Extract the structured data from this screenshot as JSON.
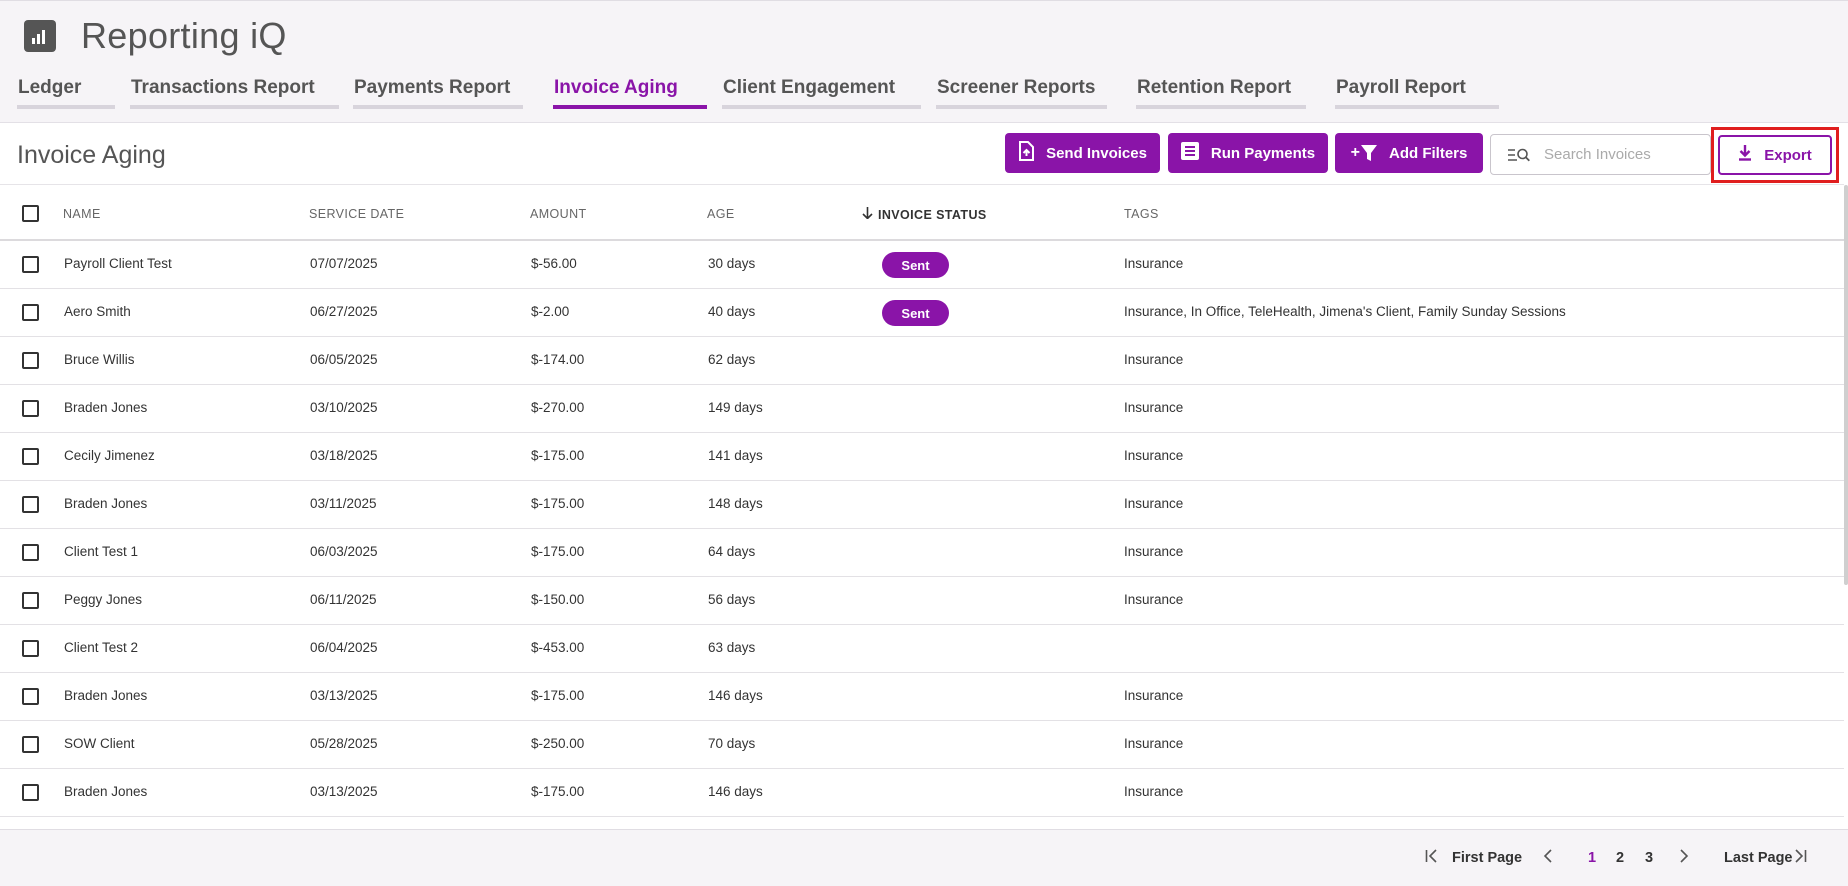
{
  "app": {
    "title": "Reporting iQ",
    "icon": "bar-chart-icon"
  },
  "tabs": [
    {
      "label": "Ledger",
      "active": false
    },
    {
      "label": "Transactions Report",
      "active": false
    },
    {
      "label": "Payments Report",
      "active": false
    },
    {
      "label": "Invoice Aging",
      "active": true
    },
    {
      "label": "Client Engagement",
      "active": false
    },
    {
      "label": "Screener Reports",
      "active": false
    },
    {
      "label": "Retention Report",
      "active": false
    },
    {
      "label": "Payroll Report",
      "active": false
    }
  ],
  "page": {
    "title": "Invoice Aging"
  },
  "toolbar": {
    "send_invoices_label": "Send Invoices",
    "run_payments_label": "Run Payments",
    "add_filters_label": "Add Filters",
    "add_filters_prefix": "+",
    "search_placeholder": "Search Invoices",
    "search_value": "",
    "export_label": "Export"
  },
  "table": {
    "columns": [
      "NAME",
      "SERVICE DATE",
      "AMOUNT",
      "AGE",
      "INVOICE STATUS",
      "TAGS"
    ],
    "sorted_column": "INVOICE STATUS",
    "rows": [
      {
        "name": "Payroll Client Test",
        "service_date": "07/07/2025",
        "amount": "$-56.00",
        "age": "30 days",
        "status": "Sent",
        "tags": "Insurance"
      },
      {
        "name": "Aero Smith",
        "service_date": "06/27/2025",
        "amount": "$-2.00",
        "age": "40 days",
        "status": "Sent",
        "tags": "Insurance, In Office, TeleHealth, Jimena's Client, Family Sunday Sessions"
      },
      {
        "name": "Bruce Willis",
        "service_date": "06/05/2025",
        "amount": "$-174.00",
        "age": "62 days",
        "status": "",
        "tags": "Insurance"
      },
      {
        "name": "Braden Jones",
        "service_date": "03/10/2025",
        "amount": "$-270.00",
        "age": "149 days",
        "status": "",
        "tags": "Insurance"
      },
      {
        "name": "Cecily Jimenez",
        "service_date": "03/18/2025",
        "amount": "$-175.00",
        "age": "141 days",
        "status": "",
        "tags": "Insurance"
      },
      {
        "name": "Braden Jones",
        "service_date": "03/11/2025",
        "amount": "$-175.00",
        "age": "148 days",
        "status": "",
        "tags": "Insurance"
      },
      {
        "name": "Client Test 1",
        "service_date": "06/03/2025",
        "amount": "$-175.00",
        "age": "64 days",
        "status": "",
        "tags": "Insurance"
      },
      {
        "name": "Peggy Jones",
        "service_date": "06/11/2025",
        "amount": "$-150.00",
        "age": "56 days",
        "status": "",
        "tags": "Insurance"
      },
      {
        "name": "Client Test 2",
        "service_date": "06/04/2025",
        "amount": "$-453.00",
        "age": "63 days",
        "status": "",
        "tags": ""
      },
      {
        "name": "Braden Jones",
        "service_date": "03/13/2025",
        "amount": "$-175.00",
        "age": "146 days",
        "status": "",
        "tags": "Insurance"
      },
      {
        "name": "SOW Client",
        "service_date": "05/28/2025",
        "amount": "$-250.00",
        "age": "70 days",
        "status": "",
        "tags": "Insurance"
      },
      {
        "name": "Braden Jones",
        "service_date": "03/13/2025",
        "amount": "$-175.00",
        "age": "146 days",
        "status": "",
        "tags": "Insurance"
      }
    ]
  },
  "pagination": {
    "first_label": "First Page",
    "last_label": "Last Page",
    "pages": [
      "1",
      "2",
      "3"
    ],
    "current_page": "1"
  },
  "colors": {
    "accent": "#8a14a8",
    "highlight": "#e01e1e"
  }
}
